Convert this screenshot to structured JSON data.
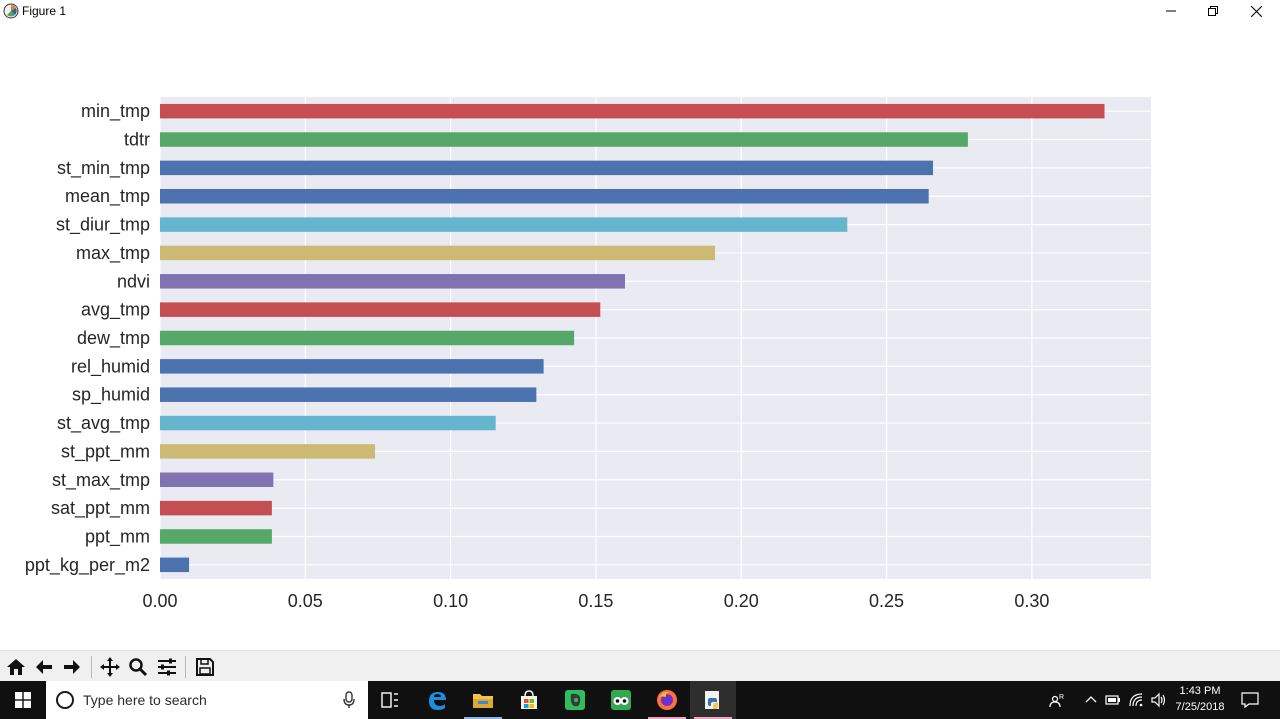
{
  "window": {
    "title": "Figure 1",
    "controls": [
      "minimize-icon",
      "restore-icon",
      "close-icon"
    ]
  },
  "chart_data": {
    "type": "bar",
    "orientation": "horizontal",
    "categories": [
      "min_tmp",
      "tdtr",
      "st_min_tmp",
      "mean_tmp",
      "st_diur_tmp",
      "max_tmp",
      "ndvi",
      "avg_tmp",
      "dew_tmp",
      "rel_humid",
      "sp_humid",
      "st_avg_tmp",
      "st_ppt_mm",
      "st_max_tmp",
      "sat_ppt_mm",
      "ppt_mm",
      "ppt_kg_per_m2"
    ],
    "values": [
      0.325,
      0.278,
      0.266,
      0.2645,
      0.2365,
      0.191,
      0.16,
      0.1515,
      0.1425,
      0.132,
      0.1295,
      0.1155,
      0.074,
      0.039,
      0.0385,
      0.0385,
      0.01
    ],
    "colors": [
      "#c44e52",
      "#55a868",
      "#4c72b0",
      "#4c72b0",
      "#64b5cd",
      "#ccb974",
      "#8172b2",
      "#c44e52",
      "#55a868",
      "#4c72b0",
      "#4c72b0",
      "#64b5cd",
      "#ccb974",
      "#8172b2",
      "#c44e52",
      "#55a868",
      "#4c72b0"
    ],
    "xticks": [
      "0.00",
      "0.05",
      "0.10",
      "0.15",
      "0.20",
      "0.25",
      "0.30"
    ],
    "xtick_values": [
      0,
      0.05,
      0.1,
      0.15,
      0.2,
      0.25,
      0.3
    ],
    "xlim": [
      0,
      0.341
    ],
    "grid": true,
    "background": "#eaeaf2",
    "title": "",
    "xlabel": "",
    "ylabel": ""
  },
  "toolbar": {
    "buttons": [
      "home-icon",
      "back-icon",
      "forward-icon",
      "pan-icon",
      "zoom-icon",
      "configure-subplots-icon",
      "save-icon"
    ]
  },
  "taskbar": {
    "search_placeholder": "Type here to search",
    "apps": [
      "task-view-icon",
      "edge-icon",
      "file-explorer-icon",
      "store-icon",
      "evernote-icon",
      "tripadvisor-icon",
      "firefox-icon",
      "python-icon"
    ],
    "time": "1:43 PM",
    "date": "7/25/2018"
  }
}
